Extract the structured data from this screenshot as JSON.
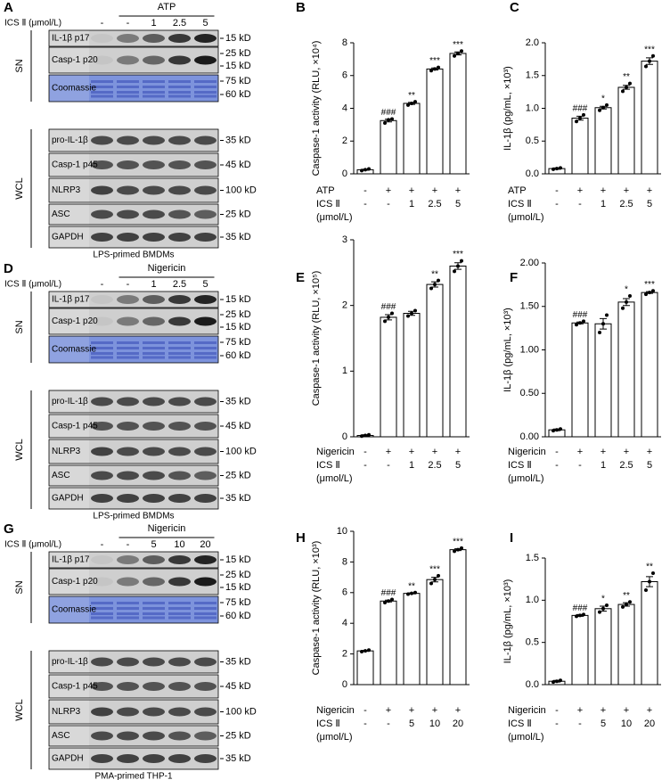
{
  "blots": [
    {
      "letter": "A",
      "treatment": "ATP",
      "dose_label": "ICS Ⅱ (μmol/L)",
      "lanes": [
        "-",
        "-",
        "1",
        "2.5",
        "5"
      ],
      "groups": [
        "SN",
        "WCL"
      ],
      "strips": [
        {
          "label": "IL-1β p17",
          "kd": [
            "15 kD"
          ]
        },
        {
          "label": "Casp-1 p20",
          "kd": [
            "25 kD",
            "15 kD"
          ]
        },
        {
          "label": "Coomassie",
          "kd": [
            "75 kD",
            "60 kD"
          ]
        },
        {
          "label": "pro-IL-1β",
          "kd": [
            "35 kD"
          ]
        },
        {
          "label": "Casp-1 p45",
          "kd": [
            "45 kD"
          ]
        },
        {
          "label": "NLRP3",
          "kd": [
            "100 kD"
          ]
        },
        {
          "label": "ASC",
          "kd": [
            "25 kD"
          ]
        },
        {
          "label": "GAPDH",
          "kd": [
            "35 kD"
          ]
        }
      ],
      "caption": "LPS-primed BMDMs"
    },
    {
      "letter": "D",
      "treatment": "Nigericin",
      "dose_label": "ICS Ⅱ (μmol/L)",
      "lanes": [
        "-",
        "-",
        "1",
        "2.5",
        "5"
      ],
      "groups": [
        "SN",
        "WCL"
      ],
      "strips": [
        {
          "label": "IL-1β p17",
          "kd": [
            "15 kD"
          ]
        },
        {
          "label": "Casp-1 p20",
          "kd": [
            "25 kD",
            "15 kD"
          ]
        },
        {
          "label": "Coomassie",
          "kd": [
            "75 kD",
            "60 kD"
          ]
        },
        {
          "label": "pro-IL-1β",
          "kd": [
            "35 kD"
          ]
        },
        {
          "label": "Casp-1 p45",
          "kd": [
            "45 kD"
          ]
        },
        {
          "label": "NLRP3",
          "kd": [
            "100 kD"
          ]
        },
        {
          "label": "ASC",
          "kd": [
            "25 kD"
          ]
        },
        {
          "label": "GAPDH",
          "kd": [
            "35 kD"
          ]
        }
      ],
      "caption": "LPS-primed BMDMs"
    },
    {
      "letter": "G",
      "treatment": "Nigericin",
      "dose_label": "ICS Ⅱ (μmol/L)",
      "lanes": [
        "-",
        "-",
        "5",
        "10",
        "20"
      ],
      "groups": [
        "SN",
        "WCL"
      ],
      "strips": [
        {
          "label": "IL-1β p17",
          "kd": [
            "15 kD"
          ]
        },
        {
          "label": "Casp-1 p20",
          "kd": [
            "25 kD",
            "15 kD"
          ]
        },
        {
          "label": "Coomassie",
          "kd": [
            "75 kD",
            "60 kD"
          ]
        },
        {
          "label": "pro-IL-1β",
          "kd": [
            "35 kD"
          ]
        },
        {
          "label": "Casp-1 p45",
          "kd": [
            "45 kD"
          ]
        },
        {
          "label": "NLRP3",
          "kd": [
            "100 kD"
          ]
        },
        {
          "label": "ASC",
          "kd": [
            "25 kD"
          ]
        },
        {
          "label": "GAPDH",
          "kd": [
            "35 kD"
          ]
        }
      ],
      "caption": "PMA-primed THP-1"
    }
  ],
  "chart_data": [
    {
      "type": "bar",
      "panel": "B",
      "ylabel": "Caspase-1 activity (RLU, ×10⁴)",
      "ylim": [
        0,
        8
      ],
      "yticks": [
        0,
        2,
        4,
        6,
        8
      ],
      "values": [
        0.25,
        3.25,
        4.3,
        6.4,
        7.35
      ],
      "errors": [
        0.03,
        0.08,
        0.06,
        0.06,
        0.09
      ],
      "points": [
        [
          0.2,
          0.25,
          0.3
        ],
        [
          3.1,
          3.3,
          3.35
        ],
        [
          4.2,
          4.3,
          4.4
        ],
        [
          6.3,
          6.4,
          6.5
        ],
        [
          7.2,
          7.35,
          7.5
        ]
      ],
      "annotations": [
        null,
        "###",
        "**",
        "***",
        "***"
      ],
      "rows": [
        {
          "label": [
            "ATP"
          ],
          "values": [
            "-",
            "+",
            "+",
            "+",
            "+"
          ]
        },
        {
          "label": [
            "ICS Ⅱ",
            "(μmol/L)"
          ],
          "values": [
            "-",
            "-",
            "1",
            "2.5",
            "5"
          ]
        }
      ]
    },
    {
      "type": "bar",
      "panel": "C",
      "ylabel": "IL-1β (pg/mL, ×10³)",
      "ylim": [
        0,
        2
      ],
      "yticks": [
        {
          "value": 0,
          "label": "0.0"
        },
        {
          "value": 0.5,
          "label": "0.5"
        },
        {
          "value": 1,
          "label": "1.0"
        },
        {
          "value": 1.5,
          "label": "1.5"
        },
        {
          "value": 2,
          "label": "2.0"
        }
      ],
      "values": [
        0.08,
        0.85,
        1.01,
        1.32,
        1.72
      ],
      "errors": [
        0.01,
        0.03,
        0.02,
        0.03,
        0.05
      ],
      "points": [
        [
          0.07,
          0.08,
          0.09
        ],
        [
          0.8,
          0.85,
          0.9
        ],
        [
          0.97,
          1.01,
          1.05
        ],
        [
          1.26,
          1.32,
          1.38
        ],
        [
          1.64,
          1.72,
          1.8
        ]
      ],
      "annotations": [
        null,
        "###",
        "*",
        "**",
        "***"
      ],
      "rows": [
        {
          "label": [
            "ATP"
          ],
          "values": [
            "-",
            "+",
            "+",
            "+",
            "+"
          ]
        },
        {
          "label": [
            "ICS Ⅱ",
            "(μmol/L)"
          ],
          "values": [
            "-",
            "-",
            "1",
            "2.5",
            "5"
          ]
        }
      ]
    },
    {
      "type": "bar",
      "panel": "E",
      "ylabel": "Caspase-1 activity (RLU, ×10⁵)",
      "ylim": [
        0,
        3
      ],
      "yticks": [
        0,
        1,
        2,
        3
      ],
      "values": [
        0.02,
        1.82,
        1.88,
        2.32,
        2.6
      ],
      "errors": [
        0.01,
        0.04,
        0.03,
        0.04,
        0.05
      ],
      "points": [
        [
          0.01,
          0.02,
          0.03
        ],
        [
          1.76,
          1.82,
          1.88
        ],
        [
          1.84,
          1.88,
          1.92
        ],
        [
          2.26,
          2.32,
          2.38
        ],
        [
          2.52,
          2.6,
          2.68
        ]
      ],
      "annotations": [
        null,
        "###",
        null,
        "**",
        "***"
      ],
      "rows": [
        {
          "label": [
            "Nigericin"
          ],
          "values": [
            "-",
            "+",
            "+",
            "+",
            "+"
          ]
        },
        {
          "label": [
            "ICS Ⅱ",
            "(μmol/L)"
          ],
          "values": [
            "-",
            "-",
            "1",
            "2.5",
            "5"
          ]
        }
      ]
    },
    {
      "type": "bar",
      "panel": "F",
      "ylabel": "IL-1β (pg/mL, ×10³)",
      "ylim": [
        0,
        2
      ],
      "yticks": [
        {
          "value": 0,
          "label": "0.00"
        },
        {
          "value": 0.5,
          "label": "0.50"
        },
        {
          "value": 1,
          "label": "1.00"
        },
        {
          "value": 1.5,
          "label": "1.50"
        },
        {
          "value": 2,
          "label": "2.00"
        }
      ],
      "values": [
        0.08,
        1.31,
        1.3,
        1.55,
        1.66
      ],
      "errors": [
        0.01,
        0.01,
        0.06,
        0.04,
        0.01
      ],
      "points": [
        [
          0.07,
          0.08,
          0.09
        ],
        [
          1.29,
          1.31,
          1.33
        ],
        [
          1.2,
          1.3,
          1.4
        ],
        [
          1.48,
          1.55,
          1.62
        ],
        [
          1.64,
          1.66,
          1.68
        ]
      ],
      "annotations": [
        null,
        "###",
        null,
        "*",
        "***"
      ],
      "rows": [
        {
          "label": [
            "Nigericin"
          ],
          "values": [
            "-",
            "+",
            "+",
            "+",
            "+"
          ]
        },
        {
          "label": [
            "ICS Ⅱ",
            "(μmol/L)"
          ],
          "values": [
            "-",
            "-",
            "1",
            "2.5",
            "5"
          ]
        }
      ]
    },
    {
      "type": "bar",
      "panel": "H",
      "ylabel": "Caspase-1 activity (RLU, ×10³)",
      "ylim": [
        0,
        10
      ],
      "yticks": [
        0,
        2,
        4,
        6,
        8,
        10
      ],
      "values": [
        2.2,
        5.45,
        5.95,
        6.85,
        8.8
      ],
      "errors": [
        0.03,
        0.06,
        0.03,
        0.15,
        0.06
      ],
      "points": [
        [
          2.15,
          2.2,
          2.25
        ],
        [
          5.35,
          5.45,
          5.55
        ],
        [
          5.9,
          5.95,
          6.0
        ],
        [
          6.6,
          6.85,
          7.1
        ],
        [
          8.7,
          8.8,
          8.9
        ]
      ],
      "annotations": [
        null,
        "###",
        "**",
        "***",
        "***"
      ],
      "rows": [
        {
          "label": [
            "Nigericin"
          ],
          "values": [
            "-",
            "+",
            "+",
            "+",
            "+"
          ]
        },
        {
          "label": [
            "ICS Ⅱ",
            "(μmol/L)"
          ],
          "values": [
            "-",
            "-",
            "5",
            "10",
            "20"
          ]
        }
      ]
    },
    {
      "type": "bar",
      "panel": "I",
      "ylabel": "IL-1β (pg/mL, ×10³)",
      "ylim": [
        0,
        1.5
      ],
      "yticks": [
        {
          "value": 0,
          "label": "0.0"
        },
        {
          "value": 0.5,
          "label": "0.5"
        },
        {
          "value": 1,
          "label": "1.0"
        },
        {
          "value": 1.5,
          "label": "1.5"
        }
      ],
      "values": [
        0.04,
        0.82,
        0.9,
        0.95,
        1.22
      ],
      "errors": [
        0.01,
        0.01,
        0.03,
        0.02,
        0.06
      ],
      "points": [
        [
          0.03,
          0.04,
          0.05
        ],
        [
          0.81,
          0.82,
          0.83
        ],
        [
          0.86,
          0.9,
          0.94
        ],
        [
          0.92,
          0.95,
          0.98
        ],
        [
          1.12,
          1.22,
          1.32
        ]
      ],
      "annotations": [
        null,
        "###",
        "*",
        "**",
        "**"
      ],
      "rows": [
        {
          "label": [
            "Nigericin"
          ],
          "values": [
            "-",
            "+",
            "+",
            "+",
            "+"
          ]
        },
        {
          "label": [
            "ICS Ⅱ",
            "(μmol/L)"
          ],
          "values": [
            "-",
            "-",
            "5",
            "10",
            "20"
          ]
        }
      ]
    }
  ]
}
